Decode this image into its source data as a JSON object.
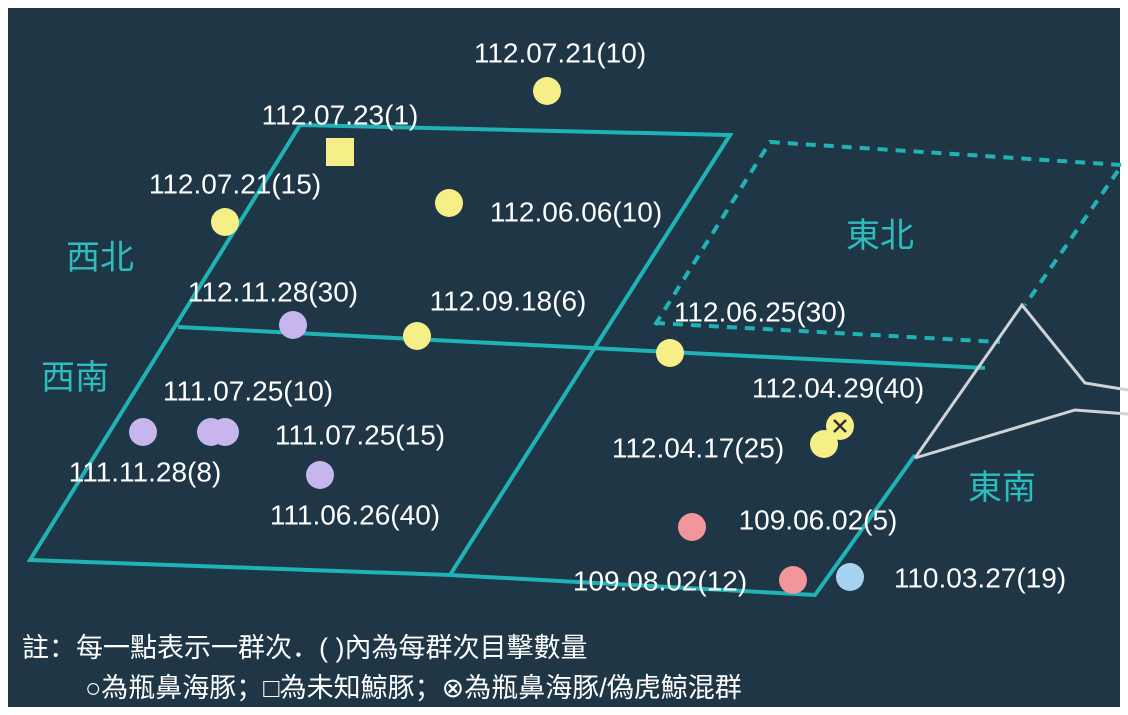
{
  "regions": [
    "西北",
    "西南",
    "東北",
    "東南"
  ],
  "points": [
    {
      "label": "112.07.21(10)",
      "marker": "circle",
      "color": "#f6ef88"
    },
    {
      "label": "112.07.23(1)",
      "marker": "square",
      "color": "#f6ef88"
    },
    {
      "label": "112.07.21(15)",
      "marker": "circle",
      "color": "#f6ef88"
    },
    {
      "label": "112.06.06(10)",
      "marker": "circle",
      "color": "#f6ef88"
    },
    {
      "label": "112.11.28(30)",
      "marker": "circle",
      "color": "#c7b6ee"
    },
    {
      "label": "112.09.18(6)",
      "marker": "circle",
      "color": "#f6ef88"
    },
    {
      "label": "112.06.25(30)",
      "marker": "circle",
      "color": "#f6ef88"
    },
    {
      "label": "112.04.29(40)",
      "marker": "cross",
      "color": "#f6ef88"
    },
    {
      "label": "112.04.17(25)",
      "marker": "circle",
      "color": "#f6ef88"
    },
    {
      "label": "111.07.25(10)",
      "marker": "circle",
      "color": "#c7b6ee"
    },
    {
      "label": "111.07.25(15)",
      "marker": "circle",
      "color": "#c7b6ee"
    },
    {
      "label": "111.11.28(8)",
      "marker": "circle",
      "color": "#c7b6ee"
    },
    {
      "label": "111.06.26(40)",
      "marker": "circle",
      "color": "#c7b6ee"
    },
    {
      "label": "109.06.02(5)",
      "marker": "circle",
      "color": "#f2969c"
    },
    {
      "label": "109.08.02(12)",
      "marker": "circle",
      "color": "#f2969c"
    },
    {
      "label": "110.03.27(19)",
      "marker": "circle",
      "color": "#a8d3f0"
    }
  ],
  "notes": [
    "註：每一點表示一群次．( )內為每群次目擊數量",
    "○為瓶鼻海豚；□為未知鯨豚；⊗為瓶鼻海豚/偽虎鯨混群"
  ]
}
